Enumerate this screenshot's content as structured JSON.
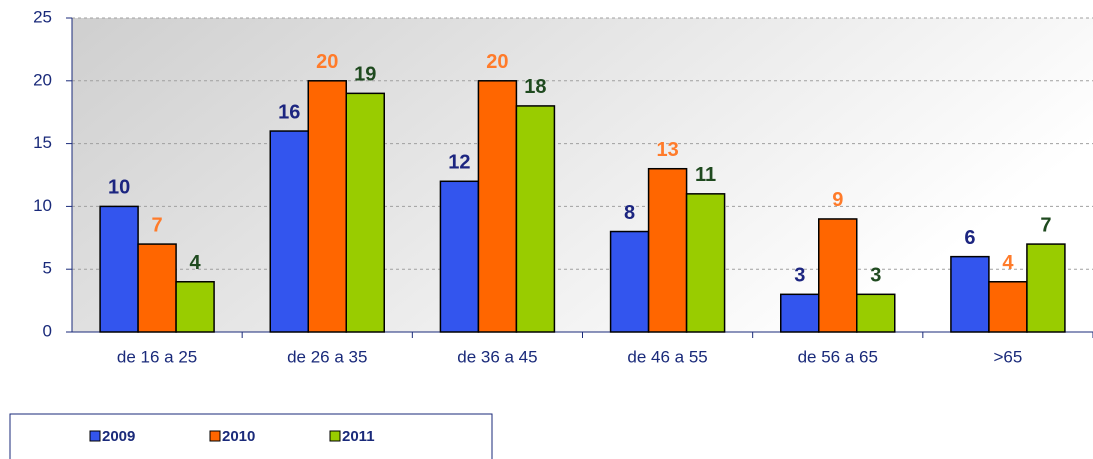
{
  "chart_data": {
    "type": "bar",
    "categories": [
      "de 16 a 25",
      "de 26 a 35",
      "de 36 a 45",
      "de 46 a 55",
      "de 56 a 65",
      ">65"
    ],
    "series": [
      {
        "name": "2009",
        "color": "#3355ee",
        "label_color": "#1c2580",
        "values": [
          10,
          16,
          12,
          8,
          3,
          6
        ]
      },
      {
        "name": "2010",
        "color": "#ff6600",
        "label_color": "#ff7b2a",
        "values": [
          7,
          20,
          20,
          13,
          9,
          4
        ]
      },
      {
        "name": "2011",
        "color": "#99cc00",
        "label_color": "#1f4a1f",
        "values": [
          4,
          19,
          18,
          11,
          3,
          7
        ]
      }
    ],
    "ylim": [
      0,
      25
    ],
    "yticks": [
      0,
      5,
      10,
      15,
      20,
      25
    ],
    "grid": true,
    "legend": "bottom-left"
  }
}
